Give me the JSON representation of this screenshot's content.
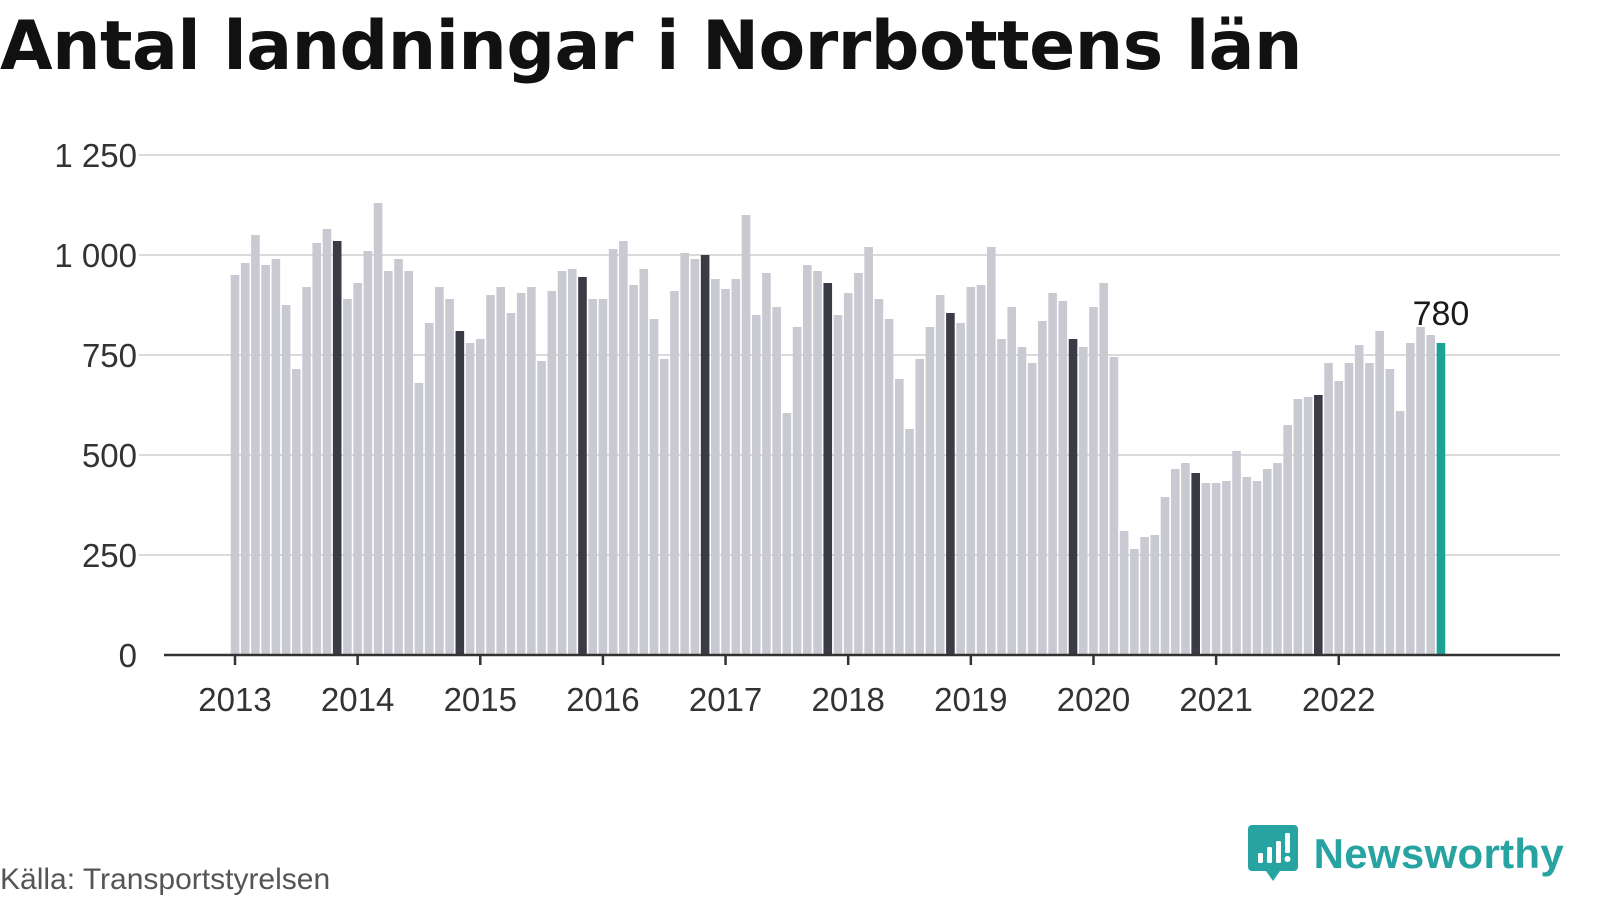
{
  "title": "Antal landningar i Norrbottens län",
  "source": "Källa: Transportstyrelsen",
  "brand": "Newsworthy",
  "colors": {
    "bar": "#c9c9d1",
    "highlight": "#3b3b45",
    "last": "#1ea295",
    "grid": "#dadada",
    "axis": "#333333",
    "brand": "#27a3a1"
  },
  "chart_data": {
    "type": "bar",
    "title": "Antal landningar i Norrbottens län",
    "xlabel": "",
    "ylabel": "",
    "ylim": [
      0,
      1250
    ],
    "yticks": [
      0,
      250,
      500,
      750,
      1000,
      1250
    ],
    "ytick_labels": [
      "0",
      "250",
      "500",
      "750",
      "1 000",
      "1 250"
    ],
    "xtick_labels": [
      "2013",
      "2014",
      "2015",
      "2016",
      "2017",
      "2018",
      "2019",
      "2020",
      "2021",
      "2022"
    ],
    "first_period": "2013-01",
    "highlighted_month": "November",
    "grid": true,
    "last_value_label": "780",
    "values": [
      950,
      980,
      1050,
      975,
      990,
      875,
      715,
      920,
      1030,
      1065,
      1035,
      890,
      930,
      1010,
      1130,
      960,
      990,
      960,
      680,
      830,
      920,
      890,
      810,
      780,
      790,
      900,
      920,
      855,
      905,
      920,
      735,
      910,
      960,
      965,
      945,
      890,
      890,
      1015,
      1035,
      925,
      965,
      840,
      740,
      910,
      1005,
      990,
      1000,
      940,
      915,
      940,
      1100,
      850,
      955,
      870,
      605,
      820,
      975,
      960,
      930,
      850,
      905,
      955,
      1020,
      890,
      840,
      690,
      565,
      740,
      820,
      900,
      855,
      830,
      920,
      925,
      1020,
      790,
      870,
      770,
      730,
      835,
      905,
      885,
      790,
      770,
      870,
      930,
      745,
      310,
      265,
      295,
      300,
      395,
      465,
      480,
      455,
      430,
      430,
      435,
      510,
      445,
      435,
      465,
      480,
      575,
      640,
      645,
      650,
      730,
      685,
      730,
      775,
      730,
      810,
      715,
      610,
      780,
      820,
      800,
      780
    ]
  }
}
